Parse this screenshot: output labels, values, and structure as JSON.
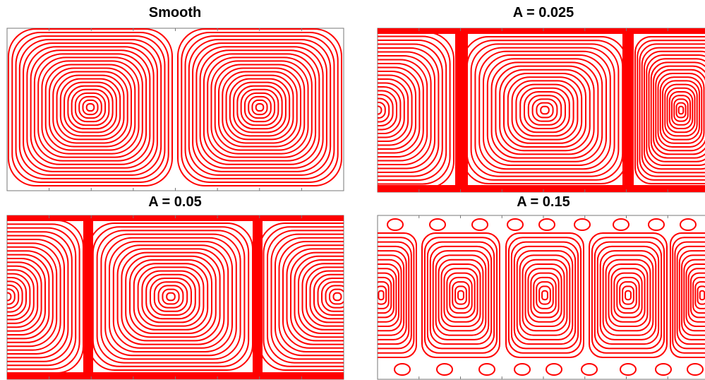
{
  "panels": [
    {
      "title": "Smooth"
    },
    {
      "title": "A = 0.025"
    },
    {
      "title": "A = 0.05"
    },
    {
      "title": "A = 0.15"
    }
  ]
}
